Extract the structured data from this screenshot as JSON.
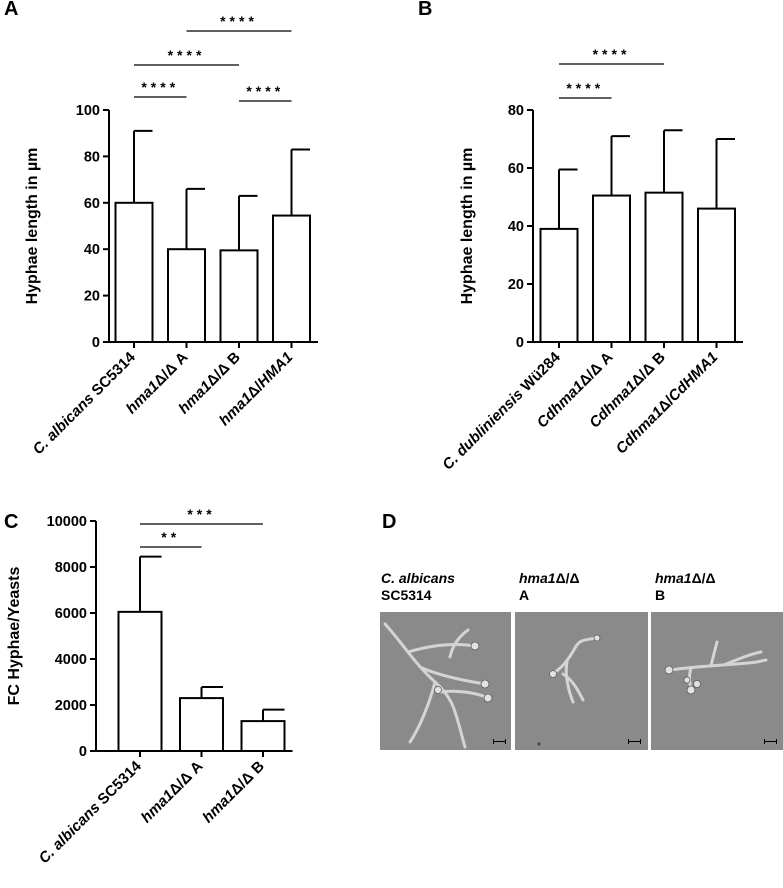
{
  "panels": {
    "a": "A",
    "b": "B",
    "c": "C",
    "d": "D"
  },
  "chart_data": [
    {
      "id": "A",
      "type": "bar",
      "ylabel": "Hyphae length in µm",
      "ylim": [
        0,
        100
      ],
      "yticks": [
        0,
        20,
        40,
        60,
        80,
        100
      ],
      "categories": [
        [
          {
            "t": "C. albicans",
            "i": true
          },
          {
            "t": " SC5314",
            "i": false
          }
        ],
        [
          {
            "t": "hma1",
            "i": true
          },
          {
            "t": "Δ/Δ A",
            "i": false
          }
        ],
        [
          {
            "t": "hma1",
            "i": true
          },
          {
            "t": "Δ/Δ B",
            "i": false
          }
        ],
        [
          {
            "t": "hma1",
            "i": true
          },
          {
            "t": "Δ/",
            "i": false
          },
          {
            "t": "HMA1",
            "i": true
          }
        ]
      ],
      "values": [
        60,
        40,
        39.5,
        54.5
      ],
      "errors": [
        91,
        66,
        63,
        83
      ],
      "significance": [
        {
          "from": 0,
          "to": 1,
          "label": "****"
        },
        {
          "from": 0,
          "to": 2,
          "label": "****"
        },
        {
          "from": 1,
          "to": 3,
          "label": "****"
        },
        {
          "from": 2,
          "to": 3,
          "label": "****"
        }
      ]
    },
    {
      "id": "B",
      "type": "bar",
      "ylabel": "Hyphae length in µm",
      "ylim": [
        0,
        80
      ],
      "yticks": [
        0,
        20,
        40,
        60,
        80
      ],
      "categories": [
        [
          {
            "t": "C. dubliniensis",
            "i": true
          },
          {
            "t": " Wü284",
            "i": false
          }
        ],
        [
          {
            "t": "Cdhma1",
            "i": true
          },
          {
            "t": "Δ/Δ A",
            "i": false
          }
        ],
        [
          {
            "t": "Cdhma1",
            "i": true
          },
          {
            "t": "Δ/Δ B",
            "i": false
          }
        ],
        [
          {
            "t": "Cdhma1",
            "i": true
          },
          {
            "t": "Δ/",
            "i": false
          },
          {
            "t": "CdHMA1",
            "i": true
          }
        ]
      ],
      "values": [
        39,
        50.5,
        51.5,
        46
      ],
      "errors": [
        59.5,
        71,
        73,
        70
      ],
      "significance": [
        {
          "from": 0,
          "to": 1,
          "label": "****"
        },
        {
          "from": 0,
          "to": 2,
          "label": "****"
        }
      ]
    },
    {
      "id": "C",
      "type": "bar",
      "ylabel": "FC Hyphae/Yeasts",
      "ylim": [
        0,
        10000
      ],
      "yticks": [
        0,
        2000,
        4000,
        6000,
        8000,
        10000
      ],
      "categories": [
        [
          {
            "t": "C. albicans",
            "i": true
          },
          {
            "t": " SC5314",
            "i": false
          }
        ],
        [
          {
            "t": "hma1",
            "i": true
          },
          {
            "t": "Δ/Δ A",
            "i": false
          }
        ],
        [
          {
            "t": "hma1",
            "i": true
          },
          {
            "t": "Δ/Δ B",
            "i": false
          }
        ]
      ],
      "values": [
        6050,
        2300,
        1300
      ],
      "errors": [
        8450,
        2780,
        1800
      ],
      "significance": [
        {
          "from": 0,
          "to": 1,
          "label": "**"
        },
        {
          "from": 0,
          "to": 2,
          "label": "***"
        }
      ]
    }
  ],
  "micrographs": [
    {
      "name": "micrograph-c-albicans-sc5314",
      "caption_italic": "C. albicans",
      "caption_line2": "SC5314"
    },
    {
      "name": "micrograph-hma1-a",
      "caption_italic": "hma1",
      "caption_rest": "Δ/Δ",
      "caption_line2": "A"
    },
    {
      "name": "micrograph-hma1-b",
      "caption_italic": "hma1",
      "caption_rest": "Δ/Δ",
      "caption_line2": "B"
    }
  ]
}
